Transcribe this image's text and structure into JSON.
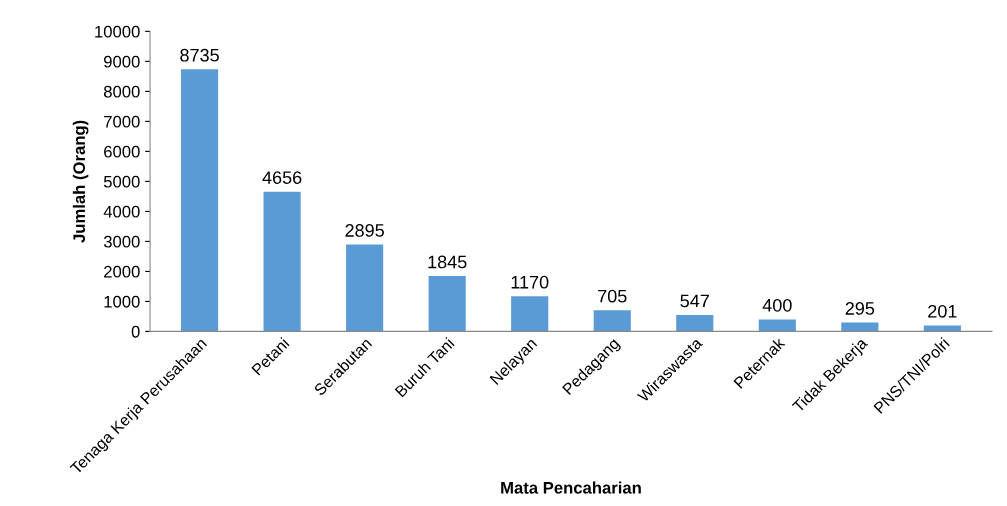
{
  "chart_data": {
    "type": "bar",
    "xlabel": "Mata Pencaharian",
    "ylabel": "Jumlah (Orang)",
    "categories": [
      "Tenaga Kerja Perusahaan",
      "Petani",
      "Serabutan",
      "Buruh Tani",
      "Nelayan",
      "Pedagang",
      "Wiraswasta",
      "Peternak",
      "Tidak Bekerja",
      "PNS/TNI/Polri"
    ],
    "values": [
      8735,
      4656,
      2895,
      1845,
      1170,
      705,
      547,
      400,
      295,
      201
    ],
    "color": "#5b9bd5",
    "ylim": [
      0,
      10000
    ],
    "yticks": [
      0,
      1000,
      2000,
      3000,
      4000,
      5000,
      6000,
      7000,
      8000,
      9000,
      10000
    ],
    "data_labels": true,
    "grid": false,
    "legend": false
  }
}
